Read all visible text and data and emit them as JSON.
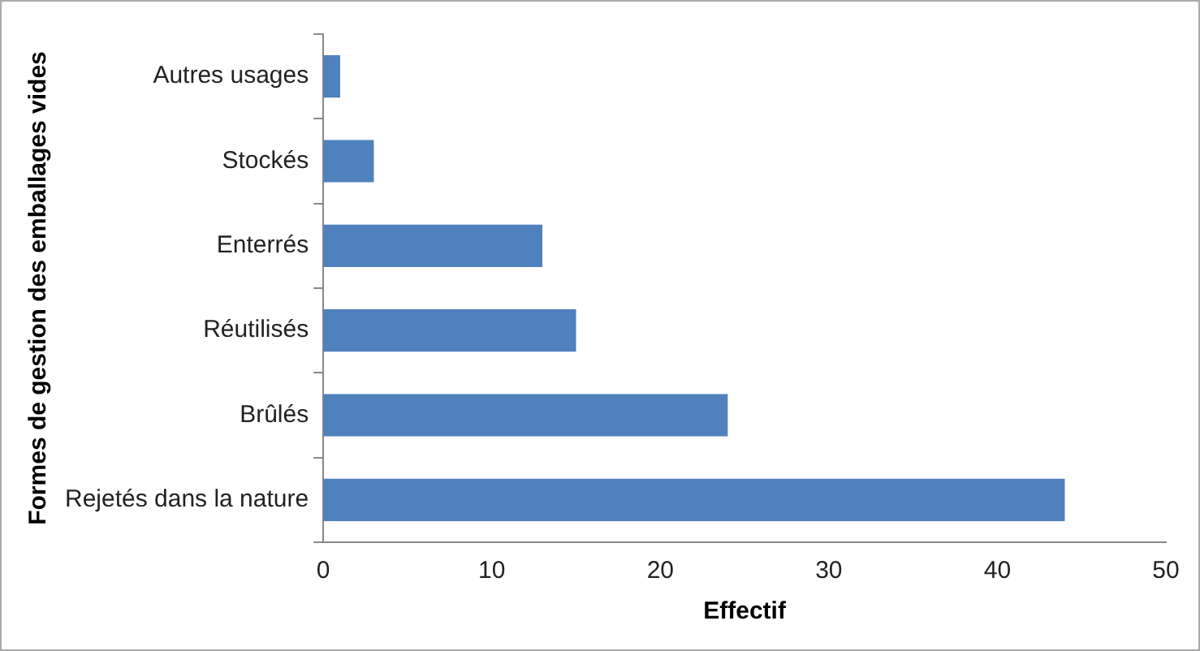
{
  "chart_data": {
    "type": "bar",
    "orientation": "horizontal",
    "xlabel": "Effectif",
    "ylabel": "Formes de gestion des emballages vides",
    "categories": [
      "Autres usages",
      "Stockés",
      "Enterrés",
      "Réutilisés",
      "Brûlés",
      "Rejetés dans la nature"
    ],
    "values": [
      1,
      3,
      13,
      15,
      24,
      44
    ],
    "color": "#4f81bd",
    "xlim": [
      0,
      50
    ],
    "xticks": [
      0,
      10,
      20,
      30,
      40,
      50
    ],
    "grid": false,
    "legend": false
  }
}
